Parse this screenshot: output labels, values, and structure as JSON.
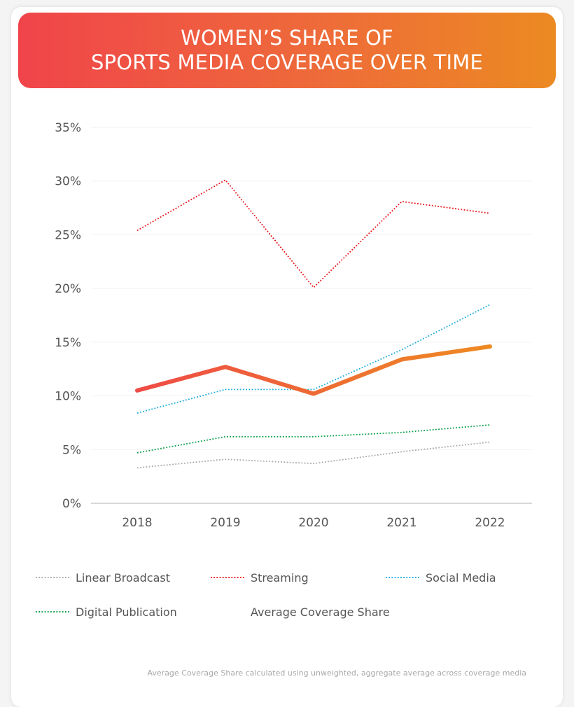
{
  "title": {
    "line1": "WOMEN’S SHARE OF",
    "line2": "SPORTS MEDIA COVERAGE OVER TIME"
  },
  "footnote": "Average Coverage Share calculated using unweighted, aggregate average across coverage media",
  "colors": {
    "banner_start": "#f0444a",
    "banner_end": "#ec8a22",
    "linear_broadcast": "#a9a9a9",
    "streaming": "#e8141a",
    "social_media": "#1aabdc",
    "digital_publication": "#0aa04a",
    "average_start": "#ef4b46",
    "average_end": "#ee8a22"
  },
  "chart_data": {
    "type": "line",
    "x": [
      "2018",
      "2019",
      "2020",
      "2021",
      "2022"
    ],
    "ylim": [
      0,
      35
    ],
    "yticks": [
      "0%",
      "5%",
      "10%",
      "15%",
      "20%",
      "25%",
      "30%",
      "35%"
    ],
    "ytick_values": [
      0,
      5,
      10,
      15,
      20,
      25,
      30,
      35
    ],
    "grid": true,
    "legend_position": "bottom",
    "series": [
      {
        "name": "Linear Broadcast",
        "values": [
          3.3,
          4.1,
          3.7,
          4.8,
          5.7
        ],
        "style": "dotted",
        "color": "#a9a9a9"
      },
      {
        "name": "Streaming",
        "values": [
          25.4,
          30.1,
          20.1,
          28.1,
          27.0
        ],
        "style": "dotted",
        "color": "#e8141a"
      },
      {
        "name": "Social Media",
        "values": [
          8.4,
          10.6,
          10.6,
          14.3,
          18.5
        ],
        "style": "dotted",
        "color": "#1aabdc"
      },
      {
        "name": "Digital Publication",
        "values": [
          4.7,
          6.2,
          6.2,
          6.6,
          7.3
        ],
        "style": "dotted",
        "color": "#0aa04a"
      },
      {
        "name": "Average Coverage Share",
        "values": [
          10.5,
          12.7,
          10.2,
          13.4,
          14.6
        ],
        "style": "solid",
        "color": "#ef6a34"
      }
    ]
  }
}
